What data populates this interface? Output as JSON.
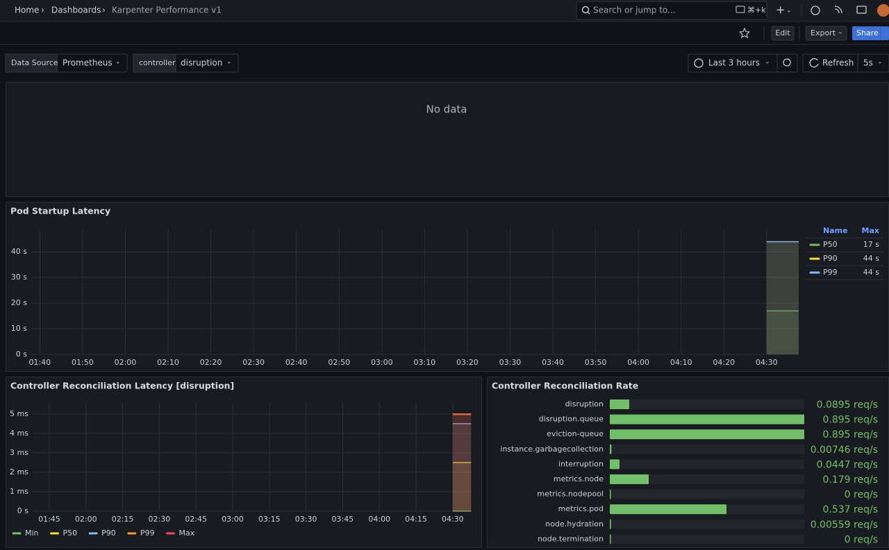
{
  "header": {
    "breadcrumbs": [
      "Home",
      "Dashboards",
      "Karpenter Performance v1"
    ],
    "search": "Search or jump to...",
    "shortcut": "⌘+k"
  },
  "toolbar": {
    "buttons": [
      "Edit",
      "Export",
      "Share"
    ]
  },
  "variables": [
    {
      "label": "Data Source",
      "value": "Prometheus"
    },
    {
      "label": "controller",
      "value": "disruption"
    }
  ],
  "time_picker": {
    "range": "Last 3 hours",
    "refresh": "Refresh",
    "interval": "5s"
  },
  "panels": {
    "empty_panel": {
      "message": "No data"
    }
  },
  "chart_data": [
    {
      "type": "line",
      "title": "Pod Startup Latency",
      "x": [
        270,
        277.5
      ],
      "xlim": [
        98,
        277.5
      ],
      "xticks": [
        {
          "value": 100,
          "label": "01:40"
        },
        {
          "value": 110,
          "label": "01:50"
        },
        {
          "value": 120,
          "label": "02:00"
        },
        {
          "value": 130,
          "label": "02:10"
        },
        {
          "value": 140,
          "label": "02:20"
        },
        {
          "value": 150,
          "label": "02:30"
        },
        {
          "value": 160,
          "label": "02:40"
        },
        {
          "value": 170,
          "label": "02:50"
        },
        {
          "value": 180,
          "label": "03:00"
        },
        {
          "value": 190,
          "label": "03:10"
        },
        {
          "value": 200,
          "label": "03:20"
        },
        {
          "value": 210,
          "label": "03:30"
        },
        {
          "value": 220,
          "label": "03:40"
        },
        {
          "value": 230,
          "label": "03:50"
        },
        {
          "value": 240,
          "label": "04:00"
        },
        {
          "value": 250,
          "label": "04:10"
        },
        {
          "value": 260,
          "label": "04:20"
        },
        {
          "value": 270,
          "label": "04:30"
        }
      ],
      "ylim": [
        0,
        49
      ],
      "yticks": [
        {
          "value": 0,
          "label": "0 s"
        },
        {
          "value": 10,
          "label": "10 s"
        },
        {
          "value": 20,
          "label": "20 s"
        },
        {
          "value": 30,
          "label": "30 s"
        },
        {
          "value": 40,
          "label": "40 s"
        }
      ],
      "grid": true,
      "legend": "right",
      "legend_columns": [
        "Name",
        "Max"
      ],
      "series": [
        {
          "name": "P50",
          "color": "#73bf69",
          "values": [
            17,
            17
          ],
          "max": {
            "value": 17,
            "label": "17 s"
          }
        },
        {
          "name": "P90",
          "color": "#fade2a",
          "values": [
            44,
            44
          ],
          "max": {
            "value": 44,
            "label": "44 s"
          }
        },
        {
          "name": "P99",
          "color": "#8ab8ff",
          "values": [
            44,
            44
          ],
          "max": {
            "value": 44,
            "label": "44 s"
          }
        }
      ]
    },
    {
      "type": "line",
      "title": "Controller Reconciliation Latency [disruption]",
      "x": [
        270,
        277.5
      ],
      "xlim": [
        98.2,
        278
      ],
      "xticks": [
        {
          "value": 105,
          "label": "01:45"
        },
        {
          "value": 120,
          "label": "02:00"
        },
        {
          "value": 135,
          "label": "02:15"
        },
        {
          "value": 150,
          "label": "02:30"
        },
        {
          "value": 165,
          "label": "02:45"
        },
        {
          "value": 180,
          "label": "03:00"
        },
        {
          "value": 195,
          "label": "03:15"
        },
        {
          "value": 210,
          "label": "03:30"
        },
        {
          "value": 225,
          "label": "03:45"
        },
        {
          "value": 240,
          "label": "04:00"
        },
        {
          "value": 255,
          "label": "04:15"
        },
        {
          "value": 270,
          "label": "04:30"
        }
      ],
      "ylim": [
        0,
        5.6
      ],
      "yticks": [
        {
          "value": 0,
          "label": "0 s"
        },
        {
          "value": 1,
          "label": "1 ms"
        },
        {
          "value": 2,
          "label": "2 ms"
        },
        {
          "value": 3,
          "label": "3 ms"
        },
        {
          "value": 4,
          "label": "4 ms"
        },
        {
          "value": 5,
          "label": "5 ms"
        }
      ],
      "grid": true,
      "legend": "bottom",
      "series": [
        {
          "name": "Min",
          "color": "#73bf69",
          "values": [
            0,
            0
          ]
        },
        {
          "name": "P50",
          "color": "#fade2a",
          "values": [
            2.5,
            2.5
          ]
        },
        {
          "name": "P90",
          "color": "#8ab8ff",
          "values": [
            4.5,
            4.5
          ]
        },
        {
          "name": "P99",
          "color": "#ff9830",
          "values": [
            5,
            5
          ]
        },
        {
          "name": "Max",
          "color": "#f2495c",
          "values": [
            4.96,
            4.96
          ]
        }
      ]
    },
    {
      "type": "bar",
      "orientation": "horizontal",
      "title": "Controller Reconciliation Rate",
      "categories": [
        "disruption",
        "disruption.queue",
        "eviction-queue",
        "instance.garbagecollection",
        "interruption",
        "metrics.node",
        "metrics.nodepool",
        "metrics.pod",
        "node.hydration",
        "node.termination"
      ],
      "values": [
        0.0895,
        0.895,
        0.895,
        0.00746,
        0.0447,
        0.179,
        0,
        0.537,
        0.00559,
        0
      ],
      "value_labels": [
        "0.0895 req/s",
        "0.895 req/s",
        "0.895 req/s",
        "0.00746 req/s",
        "0.0447 req/s",
        "0.179 req/s",
        "0 req/s",
        "0.537 req/s",
        "0.00559 req/s",
        "0 req/s"
      ],
      "xlim": [
        0,
        0.895
      ],
      "color": "#73bf69"
    }
  ]
}
